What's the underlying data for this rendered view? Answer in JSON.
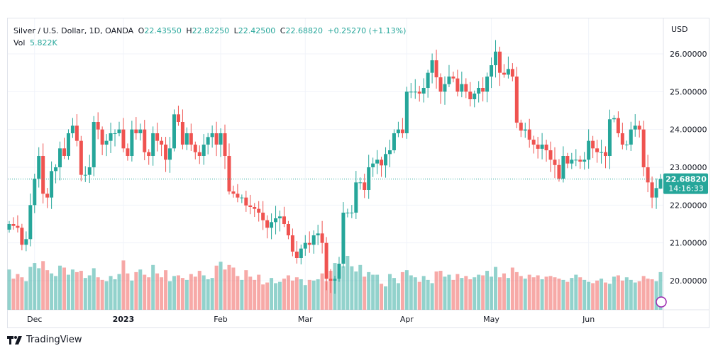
{
  "legend": {
    "symbol": "Silver / U.S. Dollar, 1D, OANDA",
    "o_label": "O",
    "o": "22.43550",
    "h_label": "H",
    "h": "22.82250",
    "l_label": "L",
    "l": "22.42500",
    "c_label": "C",
    "c": "22.68820",
    "change": "+0.25270 (+1.13%)",
    "vol_label": "Vol",
    "vol": "5.822K"
  },
  "price_axis": {
    "currency": "USD",
    "last_price": "22.68820",
    "countdown": "14:16:33"
  },
  "footer": {
    "brand": "TradingView"
  },
  "colors": {
    "up": "#26a69a",
    "down": "#ef5350",
    "grid": "#f0f3fa",
    "event": "#9c27b0"
  },
  "chart_data": {
    "type": "candlestick",
    "title": "Silver / U.S. Dollar, 1D, OANDA",
    "ylim": [
      19.3,
      26.8
    ],
    "yticks": [
      20,
      21,
      22,
      23,
      24,
      25,
      26
    ],
    "ytick_labels": [
      "20.00000",
      "21.00000",
      "22.00000",
      "23.00000",
      "24.00000",
      "25.00000",
      "26.00000"
    ],
    "xticks": [
      {
        "index": 6,
        "label": "Dec"
      },
      {
        "index": 27,
        "label": "2023"
      },
      {
        "index": 50,
        "label": "Feb"
      },
      {
        "index": 70,
        "label": "Mar"
      },
      {
        "index": 94,
        "label": "Apr"
      },
      {
        "index": 114,
        "label": "May"
      },
      {
        "index": 137,
        "label": "Jun"
      }
    ],
    "first_open": 21.35,
    "last_candle": {
      "open": 22.4355,
      "high": 22.8225,
      "low": 22.425,
      "close": 22.6882
    },
    "closes": [
      21.5,
      21.45,
      21.4,
      20.95,
      21.1,
      22.0,
      22.7,
      23.3,
      22.3,
      22.2,
      22.9,
      23.0,
      23.5,
      23.3,
      23.9,
      24.1,
      23.7,
      22.8,
      22.8,
      23.0,
      24.2,
      24.0,
      23.6,
      23.7,
      23.9,
      23.9,
      24.0,
      23.5,
      23.3,
      24.0,
      23.9,
      24.0,
      23.4,
      23.3,
      23.9,
      23.7,
      23.6,
      23.2,
      23.5,
      24.4,
      24.2,
      23.6,
      23.9,
      23.6,
      23.4,
      23.3,
      23.6,
      23.8,
      23.9,
      23.6,
      23.9,
      23.3,
      22.36,
      22.3,
      22.2,
      22.2,
      21.99,
      21.95,
      21.9,
      21.8,
      21.6,
      21.4,
      21.55,
      21.65,
      21.7,
      21.5,
      21.2,
      20.77,
      20.6,
      20.85,
      21.0,
      20.95,
      21.2,
      21.25,
      21.0,
      20.05,
      20.0,
      20.05,
      20.45,
      21.8,
      21.8,
      21.8,
      22.6,
      22.6,
      22.4,
      23.0,
      23.1,
      23.2,
      23.05,
      23.35,
      23.45,
      23.9,
      24.0,
      23.9,
      25.0,
      25.0,
      25.0,
      24.95,
      25.1,
      25.5,
      25.83,
      25.38,
      25.0,
      25.2,
      25.4,
      25.35,
      25.0,
      25.2,
      25.0,
      24.8,
      24.95,
      25.1,
      25.0,
      25.4,
      25.7,
      26.06,
      25.5,
      25.45,
      25.6,
      25.4,
      24.18,
      23.97,
      24.0,
      23.73,
      23.6,
      23.49,
      23.6,
      23.45,
      23.2,
      23.06,
      22.7,
      23.3,
      23.1,
      23.2,
      23.2,
      23.15,
      23.2,
      23.7,
      23.5,
      23.4,
      23.4,
      23.3,
      24.27,
      24.3,
      23.9,
      23.6,
      23.6,
      24.0,
      24.1,
      24.0,
      23.0,
      22.6,
      22.2,
      22.45,
      22.6882
    ],
    "volumes_k": [
      6.2,
      4.8,
      5.5,
      5.0,
      4.4,
      6.6,
      7.2,
      6.4,
      7.5,
      6.1,
      5.6,
      5.2,
      6.8,
      6.5,
      5.4,
      6.2,
      5.8,
      6.0,
      4.9,
      5.3,
      6.4,
      5.0,
      4.6,
      4.4,
      5.2,
      4.7,
      5.5,
      7.6,
      5.6,
      4.5,
      5.8,
      6.2,
      5.4,
      5.0,
      6.9,
      5.6,
      5.0,
      6.1,
      4.4,
      5.2,
      5.3,
      4.9,
      4.6,
      5.5,
      5.1,
      6.0,
      5.3,
      4.7,
      4.9,
      6.8,
      7.4,
      6.2,
      6.9,
      6.5,
      5.2,
      4.6,
      6.1,
      5.1,
      4.6,
      5.4,
      3.9,
      4.2,
      4.9,
      4.1,
      4.3,
      4.8,
      5.3,
      4.5,
      5.0,
      4.7,
      3.8,
      4.6,
      4.5,
      4.7,
      5.6,
      4.4,
      6.0,
      7.2,
      5.8,
      6.7,
      8.3,
      6.7,
      5.9,
      6.9,
      5.1,
      5.8,
      5.4,
      5.4,
      4.0,
      3.6,
      5.5,
      4.9,
      4.1,
      5.8,
      6.1,
      5.3,
      5.0,
      4.3,
      5.2,
      4.6,
      4.1,
      5.9,
      6.0,
      5.1,
      5.4,
      4.6,
      5.5,
      4.9,
      5.2,
      4.7,
      5.0,
      5.4,
      5.3,
      6.0,
      5.1,
      6.6,
      5.0,
      5.6,
      4.9,
      6.5,
      5.8,
      5.2,
      4.8,
      5.4,
      5.0,
      5.3,
      4.7,
      5.1,
      5.2,
      5.0,
      4.8,
      4.6,
      4.3,
      4.9,
      5.4,
      5.0,
      4.6,
      4.3,
      4.1,
      4.5,
      4.8,
      4.2,
      4.0,
      5.1,
      5.3,
      4.5,
      5.0,
      4.6,
      4.2,
      4.4,
      5.2,
      4.8,
      4.7,
      4.4,
      5.8
    ]
  }
}
